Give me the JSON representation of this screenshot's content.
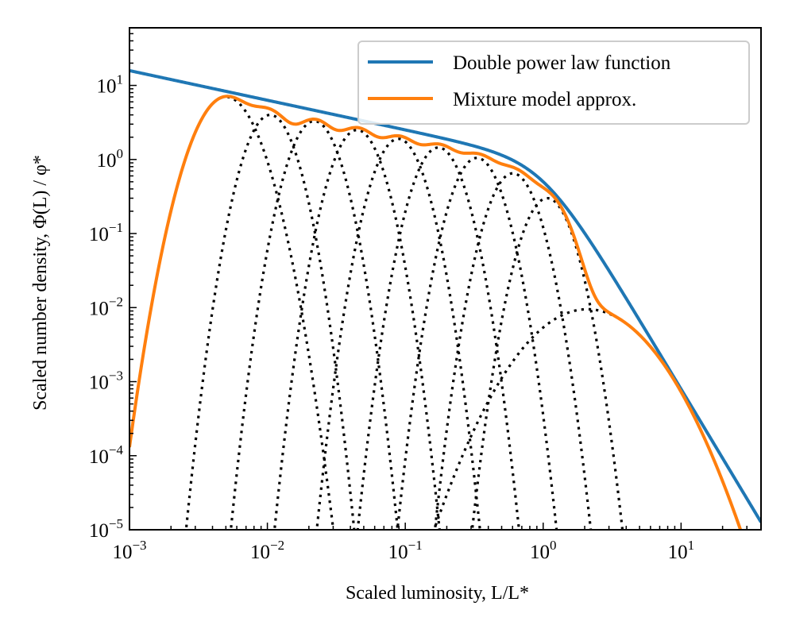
{
  "chart_data": {
    "type": "line",
    "xlabel": "Scaled luminosity, L/L*",
    "ylabel": "Scaled number density, Φ(L) / φ*",
    "xscale": "log",
    "yscale": "log",
    "xlim": [
      0.001,
      38
    ],
    "ylim": [
      1e-05,
      60
    ],
    "x_ticks": [
      {
        "base": "10",
        "exp": "−3",
        "value": 0.001
      },
      {
        "base": "10",
        "exp": "−2",
        "value": 0.01
      },
      {
        "base": "10",
        "exp": "−1",
        "value": 0.1
      },
      {
        "base": "10",
        "exp": "0",
        "value": 1
      },
      {
        "base": "10",
        "exp": "1",
        "value": 10
      }
    ],
    "y_ticks": [
      {
        "base": "10",
        "exp": "1",
        "value": 10
      },
      {
        "base": "10",
        "exp": "0",
        "value": 1
      },
      {
        "base": "10",
        "exp": "−1",
        "value": 0.1
      },
      {
        "base": "10",
        "exp": "−2",
        "value": 0.01
      },
      {
        "base": "10",
        "exp": "−3",
        "value": 0.001
      },
      {
        "base": "10",
        "exp": "−4",
        "value": 0.0001
      },
      {
        "base": "10",
        "exp": "−5",
        "value": 1e-05
      }
    ],
    "legend_position": "top-right",
    "series": [
      {
        "name": "Double power law function",
        "color": "#1f77b4",
        "style": "solid",
        "model": {
          "faint_slope": 0.4,
          "bright_slope": 3.1,
          "phi_star": 1,
          "L_star": 1
        }
      },
      {
        "name": "Mixture model approx.",
        "color": "#ff7f0e",
        "style": "solid",
        "model": "sum of components"
      },
      {
        "name": "Mixture components",
        "color": "#000000",
        "style": "dotted",
        "components": [
          {
            "log10_center": -2.3,
            "amplitude": 7.0,
            "sigma_dex": 0.15
          },
          {
            "log10_center": -1.98,
            "amplitude": 4.0,
            "sigma_dex": 0.12
          },
          {
            "log10_center": -1.66,
            "amplitude": 3.3,
            "sigma_dex": 0.12
          },
          {
            "log10_center": -1.35,
            "amplitude": 2.5,
            "sigma_dex": 0.12
          },
          {
            "log10_center": -1.05,
            "amplitude": 1.9,
            "sigma_dex": 0.12
          },
          {
            "log10_center": -0.76,
            "amplitude": 1.45,
            "sigma_dex": 0.12
          },
          {
            "log10_center": -0.48,
            "amplitude": 1.05,
            "sigma_dex": 0.12
          },
          {
            "log10_center": -0.22,
            "amplitude": 0.65,
            "sigma_dex": 0.12
          },
          {
            "log10_center": 0.03,
            "amplitude": 0.3,
            "sigma_dex": 0.12
          },
          {
            "log10_center": 0.32,
            "amplitude": 0.0095,
            "sigma_dex": 0.3
          }
        ]
      }
    ]
  }
}
